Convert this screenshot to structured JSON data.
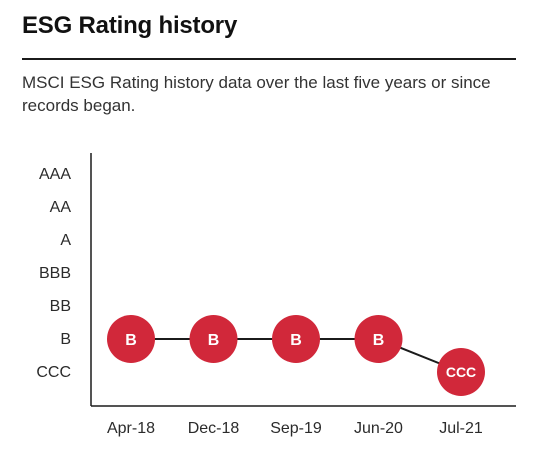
{
  "header": {
    "title": "ESG Rating history",
    "subtitle": "MSCI ESG Rating history data over the last five years or since records began."
  },
  "colors": {
    "point_fill": "#d1283a",
    "line": "#1b1b1b",
    "axis": "#1b1b1b",
    "point_text": "#ffffff"
  },
  "chart_data": {
    "type": "line",
    "y_categories": [
      "AAA",
      "AA",
      "A",
      "BBB",
      "BB",
      "B",
      "CCC"
    ],
    "categories": [
      "Apr-18",
      "Dec-18",
      "Sep-19",
      "Jun-20",
      "Jul-21"
    ],
    "values": [
      "B",
      "B",
      "B",
      "B",
      "CCC"
    ],
    "point_labels": [
      "B",
      "B",
      "B",
      "B",
      "CCC"
    ],
    "grid": false,
    "legend": "none"
  }
}
